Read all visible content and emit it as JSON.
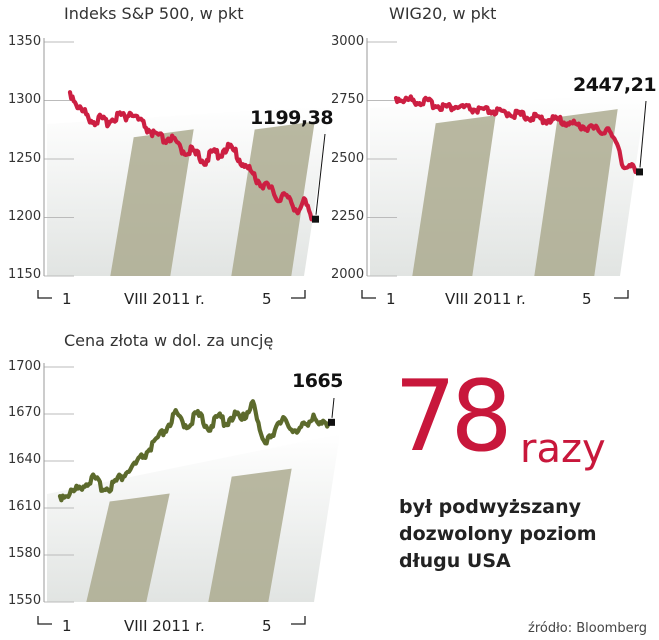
{
  "colors": {
    "red_line": "#cc1f42",
    "gold_line": "#5c6a2c",
    "band_dark": "#a9a88c",
    "band_light": "#e1e4e2",
    "accent": "#c8173b"
  },
  "chart_data": [
    {
      "type": "line",
      "title": "Indeks S&P 500, w pkt",
      "yticks": [
        "1350",
        "1300",
        "1250",
        "1200",
        "1150"
      ],
      "ylim": [
        1150,
        1350
      ],
      "xticks": [
        "1",
        "VIII 2011 r.",
        "5"
      ],
      "last_value_label": "1199,38",
      "series": [
        {
          "name": "S&P 500",
          "values": [
            1305,
            1298,
            1290,
            1287,
            1283,
            1280,
            1282,
            1279,
            1281,
            1284,
            1286,
            1283,
            1288,
            1284,
            1280,
            1276,
            1272,
            1268,
            1266,
            1264,
            1266,
            1262,
            1258,
            1254,
            1256,
            1252,
            1250,
            1246,
            1250,
            1254,
            1252,
            1256,
            1258,
            1254,
            1248,
            1243,
            1238,
            1234,
            1228,
            1226,
            1223,
            1218,
            1214,
            1218,
            1212,
            1208,
            1204,
            1212,
            1202,
            1199
          ]
        }
      ]
    },
    {
      "type": "line",
      "title": "WIG20, w pkt",
      "yticks": [
        "3000",
        "2750",
        "2500",
        "2250",
        "2000"
      ],
      "ylim": [
        2000,
        3000
      ],
      "xticks": [
        "1",
        "VIII 2011 r.",
        "5"
      ],
      "last_value_label": "2447,21",
      "series": [
        {
          "name": "WIG20",
          "values": [
            2752,
            2748,
            2742,
            2745,
            2739,
            2735,
            2738,
            2730,
            2722,
            2718,
            2715,
            2712,
            2716,
            2713,
            2710,
            2706,
            2702,
            2698,
            2696,
            2699,
            2694,
            2690,
            2686,
            2690,
            2683,
            2680,
            2676,
            2672,
            2668,
            2664,
            2661,
            2658,
            2662,
            2656,
            2650,
            2646,
            2640,
            2636,
            2630,
            2626,
            2620,
            2616,
            2610,
            2620,
            2570,
            2560,
            2456,
            2448,
            2458,
            2447
          ]
        }
      ]
    },
    {
      "type": "line",
      "title": "Cena złota w dol. za uncję",
      "yticks": [
        "1700",
        "1670",
        "1640",
        "1610",
        "1580",
        "1550"
      ],
      "ylim": [
        1550,
        1700
      ],
      "xticks": [
        "1",
        "VIII 2011 r.",
        "5"
      ],
      "last_value_label": "1665",
      "series": [
        {
          "name": "Złoto",
          "values": [
            1616,
            1617,
            1618,
            1620,
            1623,
            1625,
            1627,
            1624,
            1621,
            1622,
            1625,
            1628,
            1631,
            1634,
            1637,
            1641,
            1645,
            1649,
            1653,
            1658,
            1663,
            1668,
            1664,
            1661,
            1665,
            1668,
            1664,
            1660,
            1663,
            1667,
            1663,
            1666,
            1668,
            1664,
            1670,
            1678,
            1660,
            1650,
            1655,
            1658,
            1662,
            1665,
            1660,
            1656,
            1660,
            1664,
            1668,
            1660,
            1662,
            1665
          ]
        }
      ]
    }
  ],
  "infobox": {
    "number": "78",
    "unit": "razy",
    "line1": "był podwyższany",
    "line2": "dozwolony poziom",
    "line3": "długu USA"
  },
  "source": "źródło: Bloomberg"
}
